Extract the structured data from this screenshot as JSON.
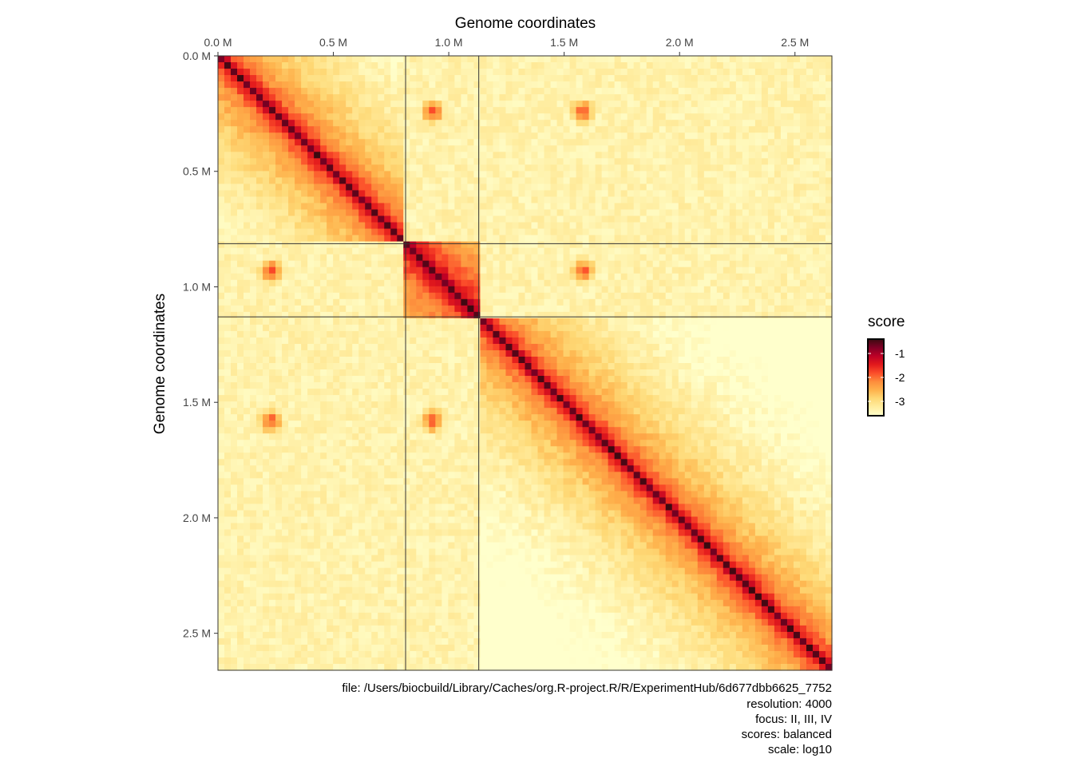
{
  "chart_data": {
    "type": "heatmap",
    "title": "",
    "xlabel": "Genome coordinates",
    "ylabel": "Genome coordinates",
    "xlim": [
      0,
      2.66
    ],
    "ylim": [
      0,
      2.66
    ],
    "axis_units": "Mb",
    "x_ticks": [
      {
        "value": 0.0,
        "label": "0.0 M"
      },
      {
        "value": 0.5,
        "label": "0.5 M"
      },
      {
        "value": 1.0,
        "label": "1.0 M"
      },
      {
        "value": 1.5,
        "label": "1.5 M"
      },
      {
        "value": 2.0,
        "label": "2.0 M"
      },
      {
        "value": 2.5,
        "label": "2.5 M"
      }
    ],
    "y_ticks": [
      {
        "value": 0.0,
        "label": "0.0 M"
      },
      {
        "value": 0.5,
        "label": "0.5 M"
      },
      {
        "value": 1.0,
        "label": "1.0 M"
      },
      {
        "value": 1.5,
        "label": "1.5 M"
      },
      {
        "value": 2.0,
        "label": "2.0 M"
      },
      {
        "value": 2.5,
        "label": "2.5 M"
      }
    ],
    "chromosome_boundaries": [
      0.813,
      1.13
    ],
    "contact_hotspots": [
      {
        "x": 0.23,
        "y": 0.24
      },
      {
        "x": 0.93,
        "y": 0.24
      },
      {
        "x": 1.58,
        "y": 0.24
      },
      {
        "x": 0.23,
        "y": 0.93
      },
      {
        "x": 1.58,
        "y": 0.93
      },
      {
        "x": 0.23,
        "y": 1.58
      },
      {
        "x": 0.93,
        "y": 1.58
      }
    ],
    "colorbar": {
      "title": "score",
      "range": [
        -3.6,
        -0.4
      ],
      "ticks": [
        {
          "value": -1,
          "label": "-1"
        },
        {
          "value": -2,
          "label": "-2"
        },
        {
          "value": -3,
          "label": "-3"
        }
      ],
      "colors": [
        "#ffffcc",
        "#ffeda0",
        "#fed976",
        "#feb24c",
        "#fd8d3c",
        "#fc4e2a",
        "#e31a1c",
        "#bd0026",
        "#800026",
        "#3b0a10"
      ]
    }
  },
  "caption": {
    "file": "file: /Users/biocbuild/Library/Caches/org.R-project.R/R/ExperimentHub/6d677dbb6625_7752",
    "resolution": "resolution: 4000",
    "focus": "focus: II, III, IV",
    "scores": "scores: balanced",
    "scale": "scale: log10"
  }
}
